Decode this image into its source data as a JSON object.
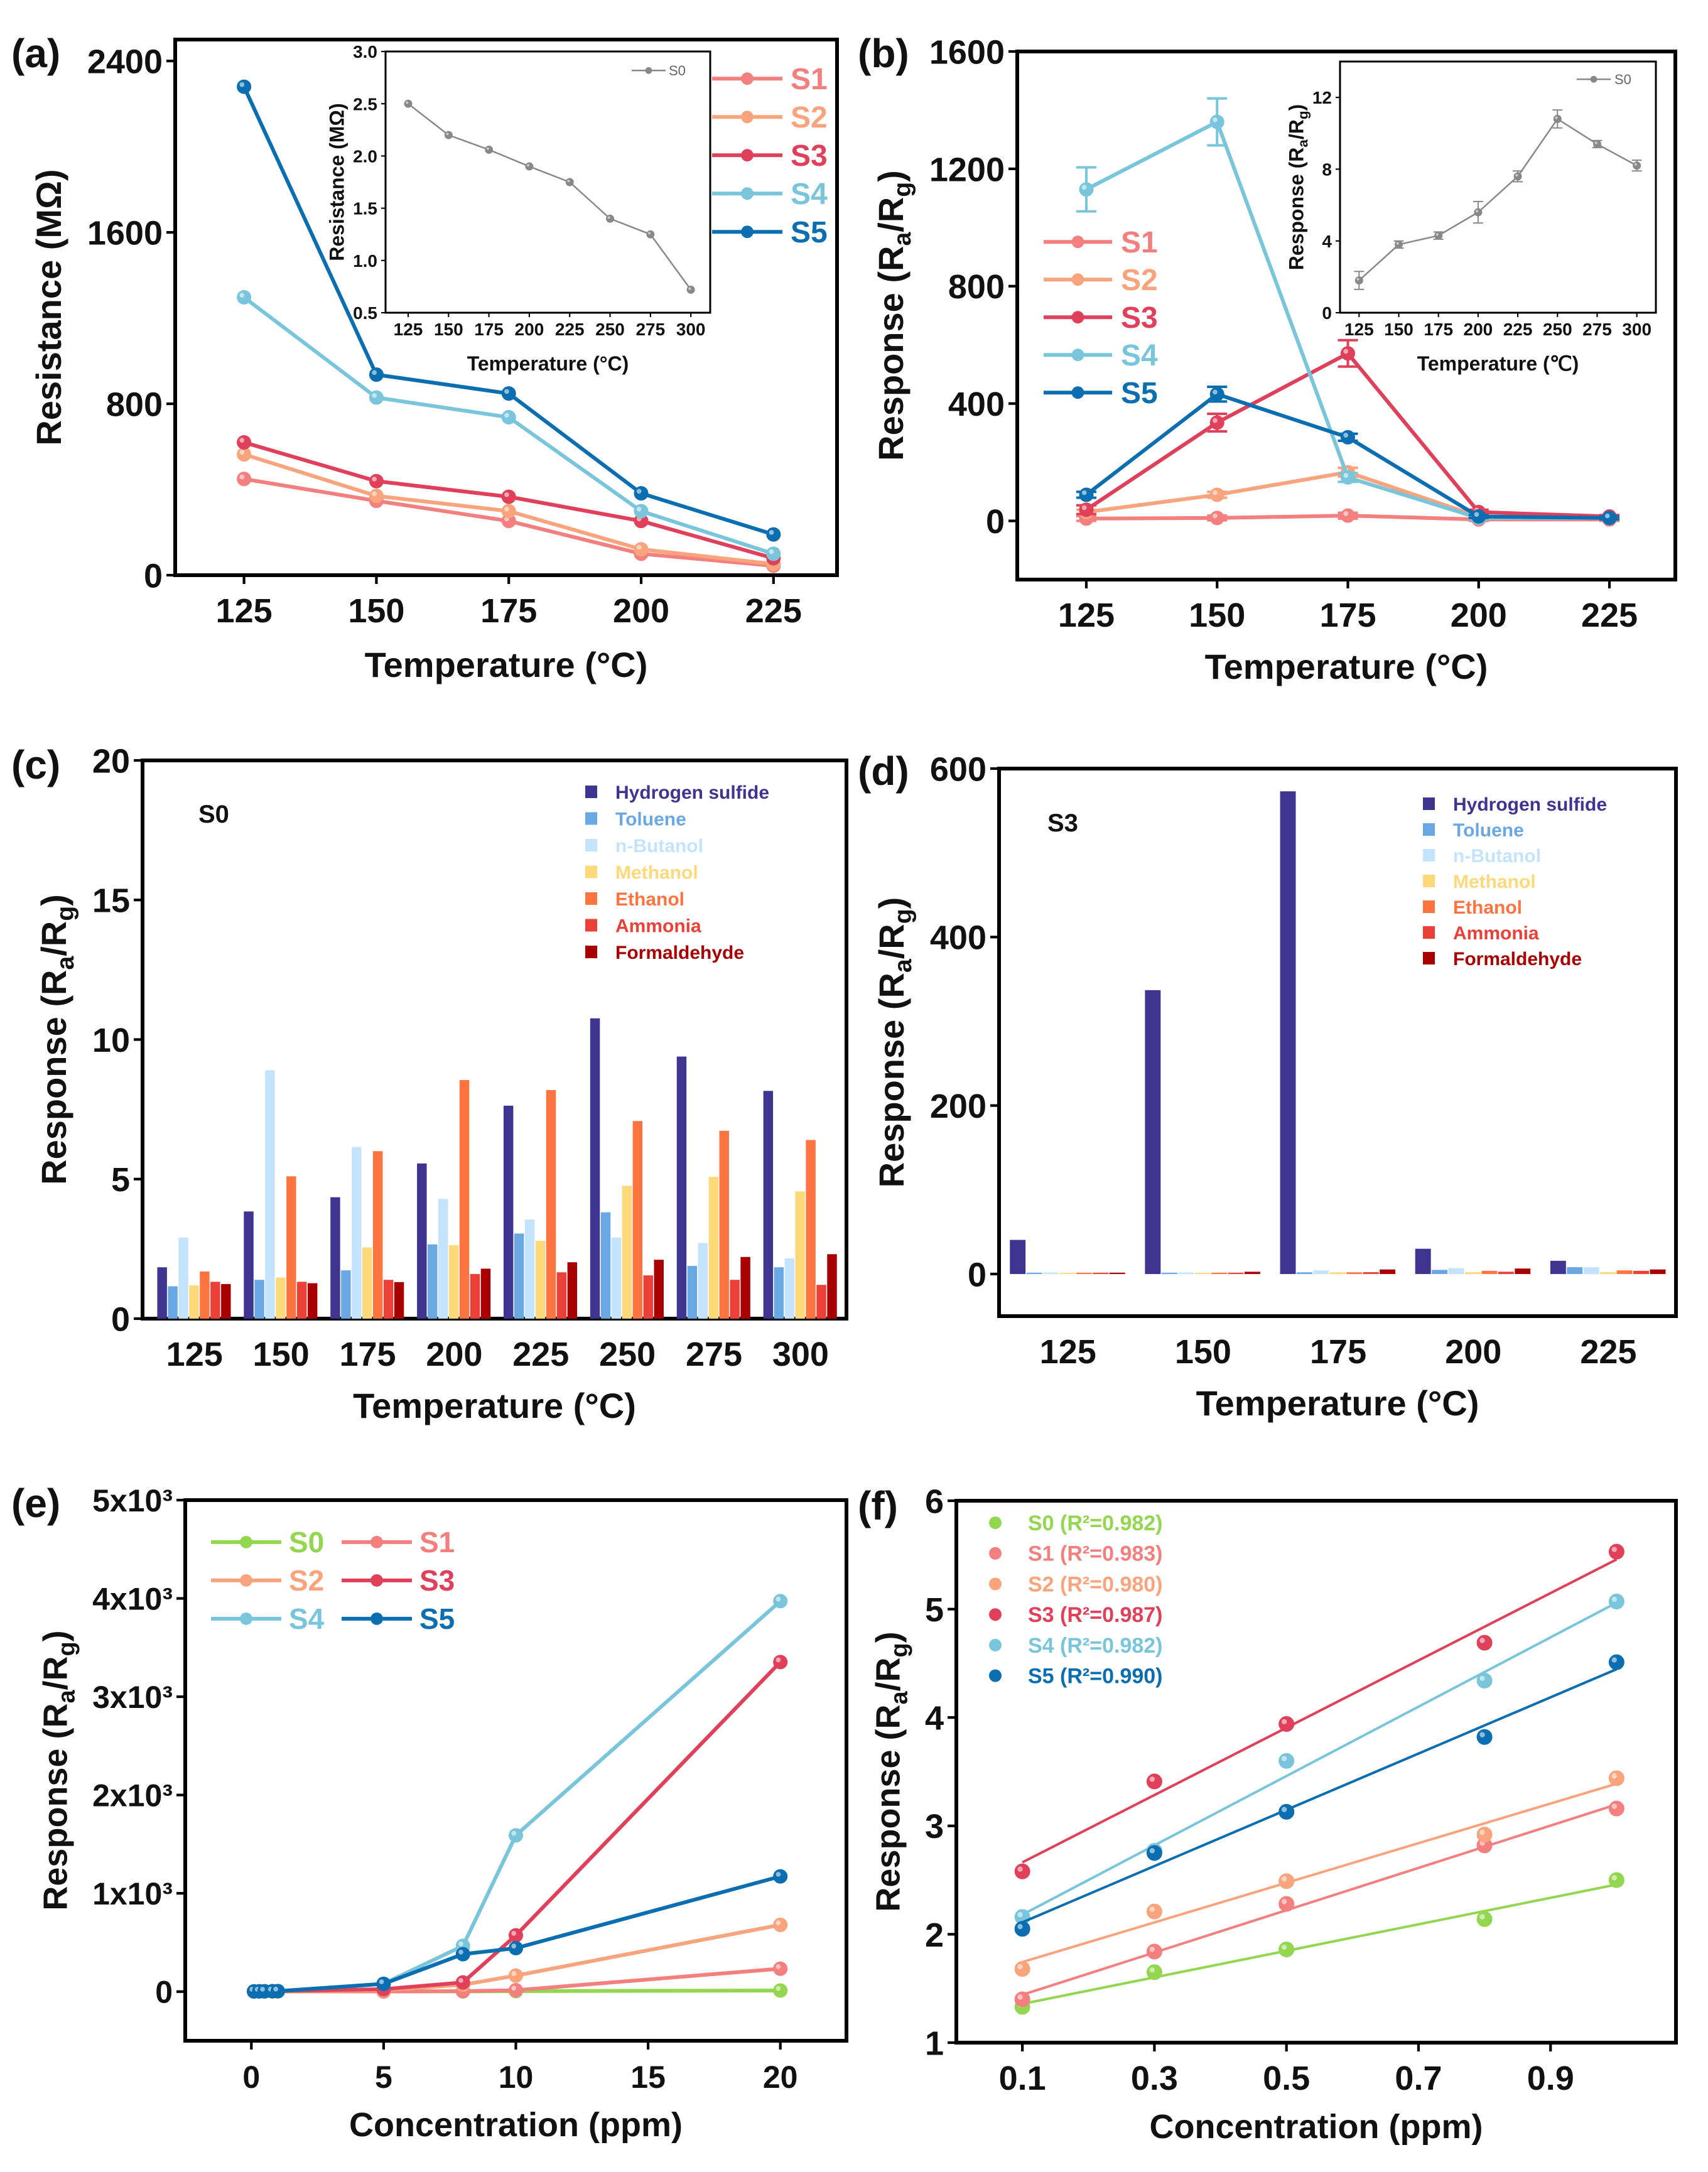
{
  "chart_data": [
    {
      "id": "a",
      "panel_label": "(a)",
      "type": "line",
      "xlabel": "Temperature (°C)",
      "ylabel": "Resistance (MΩ)",
      "xticks": [
        125,
        150,
        175,
        200,
        225
      ],
      "yticks": [
        0,
        800,
        1600,
        2400
      ],
      "ytick_labels": [
        "0",
        "800",
        "1600",
        "2400"
      ],
      "xlim": [
        112,
        237
      ],
      "ylim": [
        0,
        2500
      ],
      "legend_position": "right",
      "series": [
        {
          "name": "S1",
          "color": "#f47f7f",
          "x": [
            125,
            150,
            175,
            200,
            225
          ],
          "y": [
            449,
            347,
            253,
            100,
            44
          ]
        },
        {
          "name": "S2",
          "color": "#f9a47c",
          "x": [
            125,
            150,
            175,
            200,
            225
          ],
          "y": [
            564,
            370,
            299,
            121,
            52
          ]
        },
        {
          "name": "S3",
          "color": "#e0405a",
          "x": [
            125,
            150,
            175,
            200,
            225
          ],
          "y": [
            620,
            439,
            366,
            253,
            79
          ]
        },
        {
          "name": "S4",
          "color": "#79c6dc",
          "x": [
            125,
            150,
            175,
            200,
            225
          ],
          "y": [
            1297,
            829,
            737,
            299,
            100
          ]
        },
        {
          "name": "S5",
          "color": "#0a6eb0",
          "x": [
            125,
            150,
            175,
            200,
            225
          ],
          "y": [
            2280,
            936,
            848,
            382,
            190
          ]
        }
      ],
      "inset": {
        "type": "line",
        "xlabel": "Temperature (°C)",
        "ylabel": "Resistance (MΩ)",
        "xticks": [
          125,
          150,
          175,
          200,
          225,
          250,
          275,
          300
        ],
        "yticks": [
          0.5,
          1.0,
          1.5,
          2.0,
          2.5,
          3.0
        ],
        "ytick_labels": [
          "0.5",
          "1.0",
          "1.5",
          "2.0",
          "2.5",
          "3.0"
        ],
        "xlim": [
          111,
          312
        ],
        "ylim": [
          0.5,
          3.0
        ],
        "legend_position": "top-right",
        "series": [
          {
            "name": "S0",
            "color": "#888888",
            "x": [
              125,
              150,
              175,
              200,
              225,
              250,
              275,
              300
            ],
            "y": [
              2.5,
              2.2,
              2.06,
              1.9,
              1.75,
              1.4,
              1.25,
              0.72
            ]
          }
        ]
      }
    },
    {
      "id": "b",
      "panel_label": "(b)",
      "type": "line",
      "xlabel": "Temperature (°C)",
      "ylabel": "Response (Ra/Rg)",
      "xticks": [
        125,
        150,
        175,
        200,
        225
      ],
      "yticks": [
        0,
        400,
        800,
        1200,
        1600
      ],
      "ytick_labels": [
        "0",
        "400",
        "800",
        "1200",
        "1600"
      ],
      "xlim": [
        111.8,
        237.6
      ],
      "ylim": [
        -200,
        1600
      ],
      "legend_position": "left",
      "series": [
        {
          "name": "S1",
          "color": "#f47f7f",
          "x": [
            125,
            150,
            175,
            200,
            225
          ],
          "y": [
            8,
            10,
            18,
            5,
            5
          ],
          "error": [
            8,
            8,
            10,
            5,
            5
          ]
        },
        {
          "name": "S2",
          "color": "#f9a47c",
          "x": [
            125,
            150,
            175,
            200,
            225
          ],
          "y": [
            30,
            89,
            166,
            15,
            10
          ],
          "error": [
            8,
            10,
            15,
            5,
            5
          ]
        },
        {
          "name": "S3",
          "color": "#e0405a",
          "x": [
            125,
            150,
            175,
            200,
            225
          ],
          "y": [
            38,
            335,
            571,
            30,
            15
          ],
          "error": [
            15,
            30,
            45,
            8,
            5
          ]
        },
        {
          "name": "S4",
          "color": "#79c6dc",
          "x": [
            125,
            150,
            175,
            200,
            225
          ],
          "y": [
            1130,
            1360,
            148,
            10,
            10
          ],
          "error": [
            75,
            80,
            15,
            5,
            5
          ]
        },
        {
          "name": "S5",
          "color": "#0a6eb0",
          "x": [
            125,
            150,
            175,
            200,
            225
          ],
          "y": [
            89,
            432,
            285,
            15,
            10
          ],
          "error": [
            10,
            25,
            12,
            5,
            5
          ]
        }
      ],
      "inset": {
        "type": "line",
        "xlabel": "Temperature (℃)",
        "ylabel": "Response (Ra/Rg)",
        "xticks": [
          125,
          150,
          175,
          200,
          225,
          250,
          275,
          300
        ],
        "yticks": [
          0,
          4,
          8,
          12
        ],
        "ytick_labels": [
          "0",
          "4",
          "8",
          "12"
        ],
        "xlim": [
          113,
          312
        ],
        "ylim": [
          0,
          14
        ],
        "legend_position": "top-right",
        "series": [
          {
            "name": "S0",
            "color": "#888888",
            "x": [
              125,
              150,
              175,
              200,
              225,
              250,
              275,
              300
            ],
            "y": [
              1.8,
              3.8,
              4.3,
              5.6,
              7.6,
              10.8,
              9.4,
              8.2
            ],
            "error": [
              0.5,
              0.2,
              0.2,
              0.6,
              0.3,
              0.5,
              0.2,
              0.3
            ]
          }
        ]
      }
    },
    {
      "id": "c",
      "panel_label": "(c)",
      "type": "bar",
      "annotation": "S0",
      "xlabel": "Temperature (°C)",
      "ylabel": "Response (Ra/Rg)",
      "categories": [
        "125",
        "150",
        "175",
        "200",
        "225",
        "250",
        "275",
        "300"
      ],
      "yticks": [
        0,
        5,
        10,
        15,
        20
      ],
      "ytick_labels": [
        "0",
        "5",
        "10",
        "15",
        "20"
      ],
      "ylim": [
        0,
        20
      ],
      "legend_position": "top-right",
      "series": [
        {
          "name": "Hydrogen sulfide",
          "color": "#3f3590",
          "values": [
            1.84,
            3.84,
            4.35,
            5.56,
            7.63,
            10.76,
            9.39,
            8.16
          ]
        },
        {
          "name": "Toluene",
          "color": "#6aa8e4",
          "values": [
            1.16,
            1.39,
            1.73,
            2.66,
            3.05,
            3.81,
            1.89,
            1.84
          ]
        },
        {
          "name": "n-Butanol",
          "color": "#c3e4fc",
          "values": [
            2.9,
            8.9,
            6.15,
            4.29,
            3.55,
            2.9,
            2.71,
            2.16
          ]
        },
        {
          "name": "Methanol",
          "color": "#fdd97a",
          "values": [
            1.19,
            1.47,
            2.55,
            2.63,
            2.79,
            4.76,
            5.08,
            4.56
          ]
        },
        {
          "name": "Ethanol",
          "color": "#fd7440",
          "values": [
            1.69,
            5.1,
            6.0,
            8.55,
            8.19,
            7.08,
            6.73,
            6.4
          ]
        },
        {
          "name": "Ammonia",
          "color": "#ea4038",
          "values": [
            1.32,
            1.32,
            1.39,
            1.6,
            1.66,
            1.55,
            1.39,
            1.21
          ]
        },
        {
          "name": "Formaldehyde",
          "color": "#a80000",
          "values": [
            1.24,
            1.27,
            1.31,
            1.79,
            2.02,
            2.11,
            2.21,
            2.31
          ]
        }
      ]
    },
    {
      "id": "d",
      "panel_label": "(d)",
      "type": "bar",
      "annotation": "S3",
      "xlabel": "Temperature (°C)",
      "ylabel": "Response (Ra/Rg)",
      "categories": [
        "125",
        "150",
        "175",
        "200",
        "225"
      ],
      "yticks": [
        0,
        200,
        400,
        600
      ],
      "ytick_labels": [
        "0",
        "200",
        "400",
        "600"
      ],
      "ylim": [
        -50,
        600
      ],
      "legend_position": "top-right",
      "series": [
        {
          "name": "Hydrogen sulfide",
          "color": "#3f3590",
          "values": [
            40.5,
            337,
            573,
            30,
            15.7
          ]
        },
        {
          "name": "Toluene",
          "color": "#6aa8e4",
          "values": [
            1.6,
            1.6,
            2,
            4.9,
            8.1
          ]
        },
        {
          "name": "n-Butanol",
          "color": "#c3e4fc",
          "values": [
            1.8,
            1.8,
            4.3,
            7,
            8.1
          ]
        },
        {
          "name": "Methanol",
          "color": "#fdd97a",
          "values": [
            1.4,
            1.4,
            2,
            2.2,
            2.2
          ]
        },
        {
          "name": "Ethanol",
          "color": "#fd7440",
          "values": [
            1.6,
            1.6,
            2,
            3.8,
            4.3
          ]
        },
        {
          "name": "Ammonia",
          "color": "#ea4038",
          "values": [
            1.6,
            1.6,
            2.2,
            2.7,
            3.8
          ]
        },
        {
          "name": "Formaldehyde",
          "color": "#a80000",
          "values": [
            1.6,
            2.7,
            5.4,
            6.5,
            5.4
          ]
        }
      ]
    },
    {
      "id": "e",
      "panel_label": "(e)",
      "type": "line",
      "xlabel": "Concentration (ppm)",
      "ylabel": "Response (Ra/Rg)",
      "xticks": [
        0,
        5,
        10,
        15,
        20
      ],
      "yticks": [
        0,
        1000,
        2000,
        3000,
        4000,
        5000
      ],
      "ytick_labels": [
        "0",
        "1x10³",
        "2x10³",
        "3x10³",
        "4x10³",
        "5x10³"
      ],
      "xlim": [
        -2.5,
        22.5
      ],
      "ylim": [
        -500,
        5000
      ],
      "legend_position": "top-left",
      "series": [
        {
          "name": "S0",
          "color": "#93d650",
          "x": [
            0.1,
            0.3,
            0.5,
            0.8,
            1,
            5,
            8,
            10,
            20
          ],
          "y": [
            1.35,
            1.65,
            1.86,
            2.15,
            2.5,
            2,
            2.5,
            5,
            10.8
          ]
        },
        {
          "name": "S1",
          "color": "#f47f7f",
          "x": [
            0.1,
            0.3,
            0.5,
            0.8,
            1,
            5,
            8,
            10,
            20
          ],
          "y": [
            1.4,
            1.84,
            2.28,
            2.82,
            3.16,
            2,
            5,
            14,
            233
          ]
        },
        {
          "name": "S2",
          "color": "#f9a47c",
          "x": [
            0.1,
            0.3,
            0.5,
            0.8,
            1,
            5,
            8,
            10,
            20
          ],
          "y": [
            1.68,
            2.21,
            2.49,
            2.92,
            3.44,
            15,
            70,
            163,
            679
          ]
        },
        {
          "name": "S3",
          "color": "#e0405a",
          "x": [
            0.1,
            0.3,
            0.5,
            0.8,
            1,
            5,
            8,
            10,
            20
          ],
          "y": [
            2.58,
            3.41,
            3.94,
            4.69,
            5.53,
            25,
            93,
            572,
            3353
          ]
        },
        {
          "name": "S4",
          "color": "#79c6dc",
          "x": [
            0.1,
            0.3,
            0.5,
            0.8,
            1,
            5,
            8,
            10,
            20
          ],
          "y": [
            2.16,
            2.77,
            3.6,
            4.34,
            5.07,
            80,
            465,
            1590,
            3972
          ]
        },
        {
          "name": "S5",
          "color": "#0a6eb0",
          "x": [
            0.1,
            0.3,
            0.5,
            0.8,
            1,
            5,
            8,
            10,
            20
          ],
          "y": [
            2.05,
            2.75,
            3.13,
            3.82,
            4.51,
            79,
            381,
            442,
            1172
          ]
        }
      ]
    },
    {
      "id": "f",
      "panel_label": "(f)",
      "type": "scatter",
      "fit": "linear",
      "xlabel": "Concentration (ppm)",
      "ylabel": "Response (Ra/Rg)",
      "xticks": [
        0.1,
        0.3,
        0.5,
        0.7,
        0.9
      ],
      "xtick_labels": [
        "0.1",
        "0.3",
        "0.5",
        "0.7",
        "0.9"
      ],
      "yticks": [
        1,
        2,
        3,
        4,
        5,
        6
      ],
      "ytick_labels": [
        "1",
        "2",
        "3",
        "4",
        "5",
        "6"
      ],
      "xlim": [
        0,
        1.09
      ],
      "ylim": [
        1,
        6
      ],
      "legend_position": "top-left",
      "series": [
        {
          "name": "S0 (R²=0.982)",
          "color": "#93d650",
          "x": [
            0.1,
            0.3,
            0.5,
            0.8,
            1.0
          ],
          "y": [
            1.33,
            1.65,
            1.86,
            2.14,
            2.5
          ]
        },
        {
          "name": "S1 (R²=0.983)",
          "color": "#f47f7f",
          "x": [
            0.1,
            0.3,
            0.5,
            0.8,
            1.0
          ],
          "y": [
            1.4,
            1.84,
            2.28,
            2.82,
            3.16
          ]
        },
        {
          "name": "S2 (R²=0.980)",
          "color": "#f9a47c",
          "x": [
            0.1,
            0.3,
            0.5,
            0.8,
            1.0
          ],
          "y": [
            1.68,
            2.21,
            2.49,
            2.92,
            3.44
          ]
        },
        {
          "name": "S3 (R²=0.987)",
          "color": "#e0405a",
          "x": [
            0.1,
            0.3,
            0.5,
            0.8,
            1.0
          ],
          "y": [
            2.58,
            3.41,
            3.94,
            4.69,
            5.53
          ]
        },
        {
          "name": "S4 (R²=0.982)",
          "color": "#79c6dc",
          "x": [
            0.1,
            0.3,
            0.5,
            0.8,
            1.0
          ],
          "y": [
            2.16,
            2.77,
            3.6,
            4.34,
            5.07
          ]
        },
        {
          "name": "S5 (R²=0.990)",
          "color": "#0a6eb0",
          "x": [
            0.1,
            0.3,
            0.5,
            0.8,
            1.0
          ],
          "y": [
            2.05,
            2.75,
            3.13,
            3.82,
            4.51
          ]
        }
      ]
    }
  ]
}
